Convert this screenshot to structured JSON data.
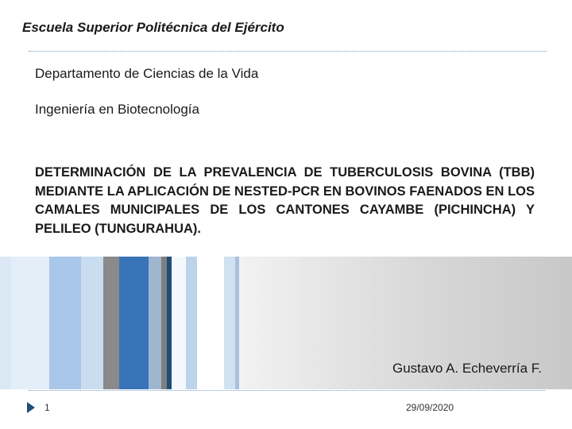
{
  "header": {
    "school": "Escuela Superior Politécnica del Ejército"
  },
  "body": {
    "department": "Departamento de Ciencias de la Vida",
    "career": "Ingeniería en Biotecnología",
    "title": "DETERMINACIÓN DE LA PREVALENCIA DE TUBERCULOSIS BOVINA (TBB) MEDIANTE LA APLICACIÓN DE NESTED-PCR EN BOVINOS FAENADOS EN LOS CAMALES MUNICIPALES DE LOS CANTONES CAYAMBE (PICHINCHA) Y PELILEO (TUNGURAHUA).",
    "author": "Gustavo A. Echeverría F."
  },
  "footer": {
    "slide_number": "1",
    "date": "29/09/2020"
  },
  "theme": {
    "accent": "#1f4e79",
    "stripe_blue": "#3a74b8",
    "stripe_light": "#bcd3ea",
    "stripe_gray": "#7f7f7f",
    "rule_color": "#7a9cc4"
  }
}
